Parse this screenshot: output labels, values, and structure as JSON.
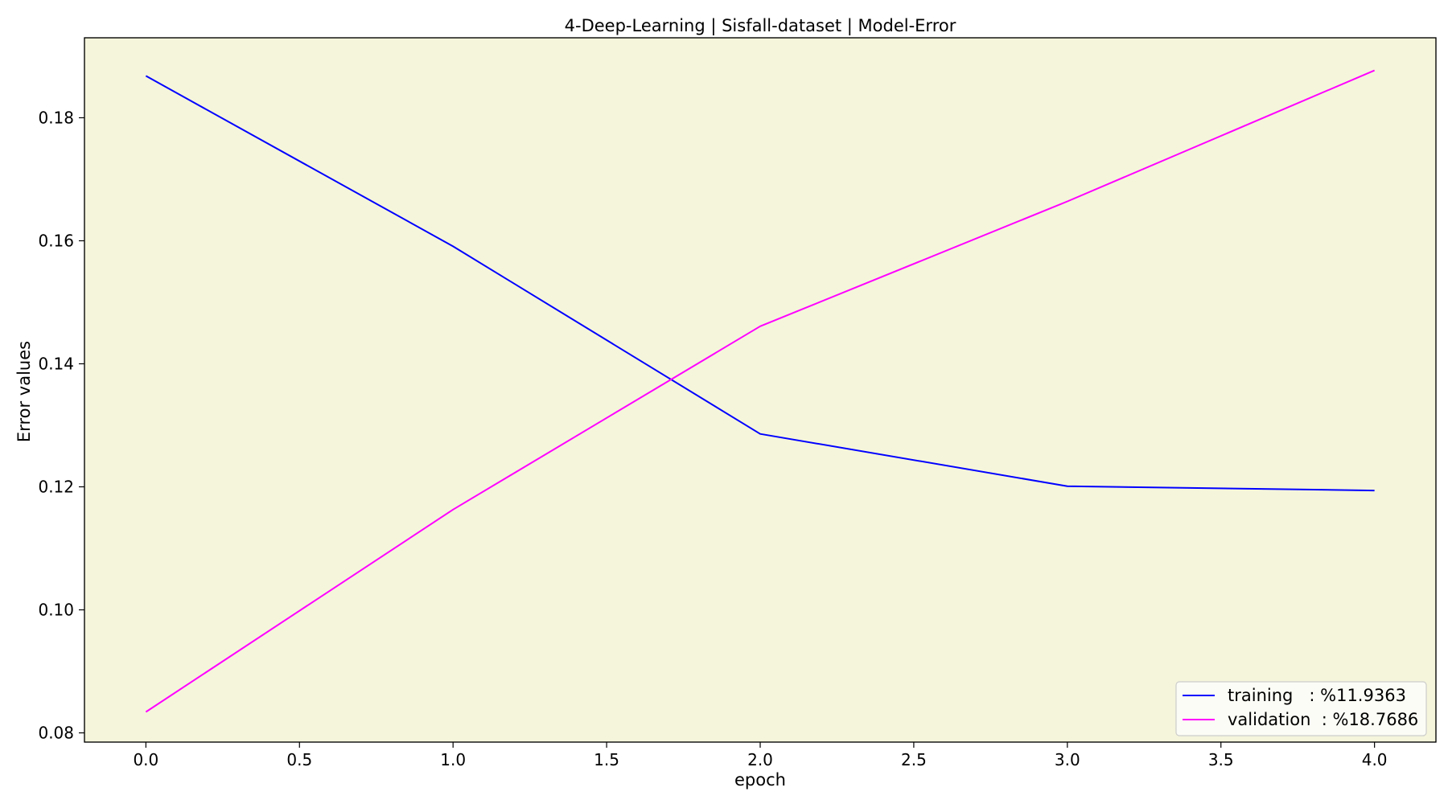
{
  "chart_data": {
    "type": "line",
    "title": "4-Deep-Learning | Sisfall-dataset  | Model-Error",
    "xlabel": "epoch",
    "ylabel": "Error values",
    "x": [
      0,
      1,
      2,
      3,
      4
    ],
    "xlim": [
      -0.2,
      4.2
    ],
    "ylim": [
      0.0785,
      0.193
    ],
    "xticks": [
      0.0,
      0.5,
      1.0,
      1.5,
      2.0,
      2.5,
      3.0,
      3.5,
      4.0
    ],
    "xtick_labels": [
      "0.0",
      "0.5",
      "1.0",
      "1.5",
      "2.0",
      "2.5",
      "3.0",
      "3.5",
      "4.0"
    ],
    "yticks": [
      0.08,
      0.1,
      0.12,
      0.14,
      0.16,
      0.18
    ],
    "ytick_labels": [
      "0.08",
      "0.10",
      "0.12",
      "0.14",
      "0.16",
      "0.18"
    ],
    "grid": false,
    "background": "#f5f5dc",
    "legend_position": "lower-right",
    "series": [
      {
        "name": "training   : %11.9363",
        "color": "#0000ff",
        "values": [
          0.1868,
          0.1591,
          0.1286,
          0.1201,
          0.1194
        ]
      },
      {
        "name": "validation  : %18.7686",
        "color": "#ff00ff",
        "values": [
          0.0834,
          0.1163,
          0.1461,
          0.1664,
          0.1877
        ]
      }
    ]
  }
}
